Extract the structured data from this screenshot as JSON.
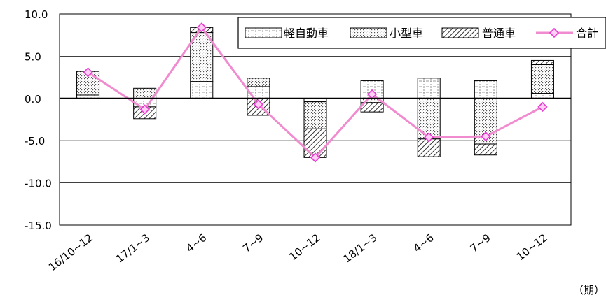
{
  "chart_data": {
    "type": "bar",
    "stacked": true,
    "categories": [
      "16/10~12",
      "17/1~3",
      "4~6",
      "7~9",
      "10~12",
      "18/1~3",
      "4~6",
      "7~9",
      "10~12"
    ],
    "series": [
      {
        "name": "軽自動車",
        "kind": "bar",
        "pattern": "grid",
        "values": [
          0.4,
          -1.0,
          2.0,
          1.4,
          -0.4,
          2.1,
          2.4,
          2.1,
          0.6
        ]
      },
      {
        "name": "小型車",
        "kind": "bar",
        "pattern": "dots",
        "values": [
          2.8,
          1.2,
          5.8,
          1.0,
          -3.2,
          -0.5,
          -4.8,
          -5.4,
          3.4
        ]
      },
      {
        "name": "普通車",
        "kind": "bar",
        "pattern": "hatch",
        "values": [
          0.0,
          -1.4,
          0.6,
          -2.0,
          -3.4,
          -1.1,
          -2.1,
          -1.3,
          0.5
        ]
      },
      {
        "name": "合計",
        "kind": "line",
        "color": "#f08bd0",
        "marker_color": "#e83bd3",
        "values": [
          3.1,
          -1.3,
          8.4,
          -0.7,
          -7.0,
          0.5,
          -4.6,
          -4.5,
          -1.0
        ]
      }
    ],
    "negative_only_bars": {
      "index": 8,
      "series": "小型車",
      "extra_negative": -5.4
    },
    "ylim": [
      -15.0,
      10.0
    ],
    "yticks": [
      "10.0",
      "5.0",
      "0.0",
      "-5.0",
      "-10.0",
      "-15.0"
    ],
    "ytick_values": [
      10,
      5,
      0,
      -5,
      -10,
      -15
    ],
    "unit_label": "（期）",
    "grid": true,
    "legend_position": "top-right"
  }
}
